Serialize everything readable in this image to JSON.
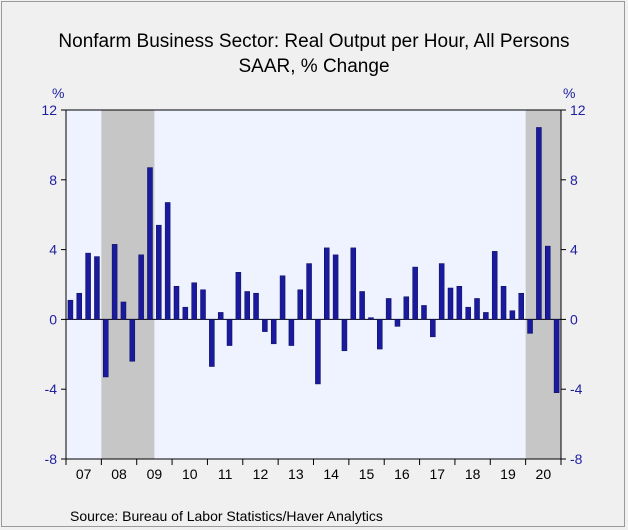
{
  "chart_data": {
    "type": "bar",
    "title": "Nonfarm Business Sector: Real Output per Hour, All Persons",
    "subtitle": "SAAR, % Change",
    "ylabel_left": "%",
    "ylabel_right": "%",
    "ylim": [
      -8,
      12
    ],
    "yticks": [
      12,
      8,
      4,
      0,
      -4,
      -8
    ],
    "xlabels": [
      "07",
      "08",
      "09",
      "10",
      "11",
      "12",
      "13",
      "14",
      "15",
      "16",
      "17",
      "18",
      "19",
      "20"
    ],
    "quarters_per_year": 4,
    "start": "2007 Q1",
    "recessions": [
      [
        "2008 Q1",
        "2009 Q2"
      ],
      [
        "2020 Q1",
        "2020 Q4"
      ]
    ],
    "colors": {
      "bar": "#1a1a9e",
      "plot_bg": "#eef3ff",
      "recession": "#c6c6c6",
      "page_bg": "#f0f0f0",
      "tick_label": "#1f1fa0"
    },
    "values": [
      1.1,
      1.5,
      3.8,
      3.6,
      -3.3,
      4.3,
      1.0,
      -2.4,
      3.7,
      8.7,
      5.4,
      6.7,
      1.9,
      0.7,
      2.1,
      1.7,
      -2.7,
      0.4,
      -1.5,
      2.7,
      1.6,
      1.5,
      -0.7,
      -1.4,
      2.5,
      -1.5,
      1.7,
      3.2,
      -3.7,
      4.1,
      3.7,
      -1.8,
      4.1,
      1.6,
      0.1,
      -1.7,
      1.2,
      -0.4,
      1.3,
      3.0,
      0.8,
      -1.0,
      3.2,
      1.8,
      1.9,
      0.7,
      1.2,
      0.4,
      3.9,
      1.9,
      0.5,
      1.5,
      -0.8,
      11.0,
      4.2,
      -4.2
    ]
  },
  "source": "Source:  Bureau of Labor Statistics/Haver Analytics"
}
